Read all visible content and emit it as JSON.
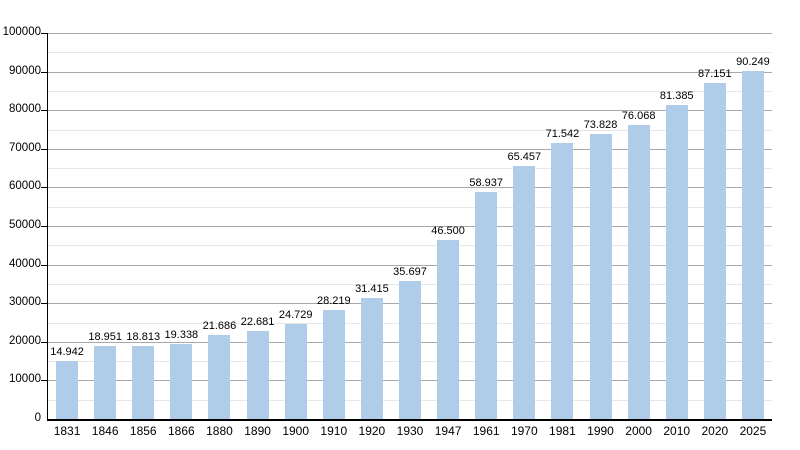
{
  "chart_data": {
    "type": "bar",
    "title": "",
    "xlabel": "",
    "ylabel": "",
    "categories": [
      "1831",
      "1846",
      "1856",
      "1866",
      "1880",
      "1890",
      "1900",
      "1910",
      "1920",
      "1930",
      "1947",
      "1961",
      "1970",
      "1981",
      "1990",
      "2000",
      "2010",
      "2020",
      "2025"
    ],
    "values": [
      14942,
      18951,
      18813,
      19338,
      21686,
      22681,
      24729,
      28219,
      31415,
      35697,
      46500,
      58937,
      65457,
      71542,
      73828,
      76068,
      81385,
      87151,
      90249
    ],
    "value_labels": [
      "14.942",
      "18.951",
      "18.813",
      "19.338",
      "21.686",
      "22.681",
      "24.729",
      "28.219",
      "31.415",
      "35.697",
      "46.500",
      "58.937",
      "65.457",
      "71.542",
      "73.828",
      "76.068",
      "81.385",
      "87.151",
      "90.249"
    ],
    "ylim": [
      0,
      100000
    ],
    "y_major_ticks": [
      0,
      10000,
      20000,
      30000,
      40000,
      50000,
      60000,
      70000,
      80000,
      90000,
      100000
    ],
    "y_major_tick_labels": [
      "0",
      "10000",
      "20000",
      "30000",
      "40000",
      "50000",
      "60000",
      "70000",
      "80000",
      "90000",
      "100000"
    ],
    "y_minor_step": 5000,
    "grid": "major-and-minor-horizontal",
    "legend": null,
    "colors": {
      "bar_fill": "#afcde8",
      "grid_major": "#a8a8a8",
      "grid_minor": "#e7e7e7",
      "axis": "#000000",
      "text": "#000000",
      "background": "#ffffff"
    }
  }
}
